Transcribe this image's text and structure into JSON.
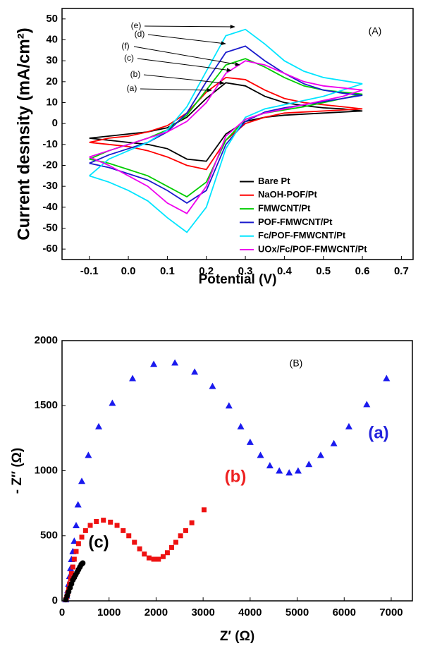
{
  "chart_data": [
    {
      "type": "line",
      "panel_label": "(A)",
      "x_label": "Potential (V)",
      "y_label": "Current desnsity (mA/cm²)",
      "xlim": [
        -0.17,
        0.73
      ],
      "ylim": [
        -65,
        55
      ],
      "xticks": [
        -0.1,
        {
          "value": 0,
          "label": "0.0"
        },
        0.1,
        0.2,
        0.3,
        0.4,
        0.5,
        0.6,
        0.7
      ],
      "yticks": [
        -60,
        -50,
        -40,
        -30,
        -20,
        -10,
        0,
        10,
        20,
        30,
        40,
        50
      ],
      "legend": "lower right",
      "annotations": [
        "(e)",
        "(d)",
        "(f)",
        "(c)",
        "(b)",
        "(a)"
      ],
      "x": [
        -0.1,
        -0.05,
        0,
        0.05,
        0.1,
        0.15,
        0.2,
        0.25,
        0.3,
        0.35,
        0.4,
        0.45,
        0.5,
        0.55,
        0.6,
        0.6,
        0.55,
        0.5,
        0.45,
        0.4,
        0.35,
        0.3,
        0.25,
        0.2,
        0.15,
        0.1,
        0.05,
        0,
        -0.05,
        -0.1
      ],
      "series": [
        {
          "name": "Bare Pt",
          "color": "#000000",
          "values": [
            -7,
            -6,
            -5,
            -4,
            -2,
            3,
            12,
            19.5,
            18,
            13,
            10,
            8.5,
            7.5,
            7,
            6,
            6,
            5.5,
            5,
            4.5,
            4,
            3,
            1,
            -5,
            -18,
            -17,
            -12,
            -10,
            -9,
            -8,
            -7
          ]
        },
        {
          "name": "NaOH-POF/Pt",
          "color": "#ff0000",
          "values": [
            -9,
            -7,
            -6,
            -4,
            -1,
            5,
            15,
            22,
            21,
            16,
            12,
            10,
            9,
            8,
            7,
            7,
            6.5,
            6,
            5.5,
            5,
            3,
            0,
            -8,
            -22,
            -20,
            -16,
            -13,
            -11,
            -10,
            -9
          ]
        },
        {
          "name": "FMWCNT/Pt",
          "color": "#00cc00",
          "values": [
            -17,
            -13,
            -10,
            -7,
            -3,
            4,
            16,
            28,
            31,
            27,
            22,
            18,
            16,
            15,
            14,
            14,
            12,
            10,
            8,
            6.5,
            5,
            2,
            -8,
            -28,
            -35,
            -30,
            -25,
            -22,
            -19,
            -17
          ]
        },
        {
          "name": "POF-FMWCNT/Pt",
          "color": "#1a1acc",
          "values": [
            -19,
            -15,
            -12,
            -9,
            -4,
            5,
            20,
            34,
            37,
            30,
            24,
            19,
            16,
            14.5,
            13.5,
            13.5,
            12,
            10.5,
            9,
            7.5,
            5.5,
            1,
            -10,
            -32,
            -38,
            -32,
            -27,
            -24,
            -21,
            -19
          ]
        },
        {
          "name": "Fc/POF-FMWCNT/Pt",
          "color": "#00e5ff",
          "values": [
            -25,
            -17,
            -13,
            -9,
            -3,
            8,
            25,
            42,
            45,
            38,
            30,
            25,
            22,
            20.5,
            19,
            19,
            16,
            13,
            11,
            9,
            7,
            3,
            -12,
            -40,
            -52,
            -45,
            -37,
            -32,
            -28,
            -25
          ]
        },
        {
          "name": "UOx/Fc/POF-FMWCNT/Pt",
          "color": "#ee00ee",
          "values": [
            -16,
            -13,
            -10,
            -7,
            -4,
            1,
            10,
            24,
            30,
            28,
            24,
            20,
            18,
            17,
            16,
            16,
            13,
            11,
            9,
            7,
            5,
            2,
            -6,
            -30,
            -43,
            -38,
            -30,
            -25,
            -20,
            -16
          ]
        }
      ]
    },
    {
      "type": "scatter",
      "panel_label": "(B)",
      "x_label": "Z′ (Ω)",
      "y_label": "- Z″ (Ω)",
      "xlim": [
        0,
        7450
      ],
      "ylim": [
        0,
        2000
      ],
      "xticks": [
        0,
        1000,
        2000,
        3000,
        4000,
        5000,
        6000,
        7000
      ],
      "yticks": [
        0,
        500,
        1000,
        1500,
        2000
      ],
      "annotations": [
        {
          "text": "(a)",
          "color": "#2222dd"
        },
        {
          "text": "(b)",
          "color": "#ee2222"
        },
        {
          "text": "(c)",
          "color": "#000000"
        }
      ],
      "series": [
        {
          "marker": "triangle",
          "color": "#1a1aee",
          "x": [
            80,
            100,
            120,
            140,
            160,
            180,
            200,
            230,
            260,
            300,
            340,
            420,
            560,
            780,
            1070,
            1500,
            1950,
            2400,
            2820,
            3200,
            3550,
            3800,
            4000,
            4220,
            4420,
            4620,
            4830,
            5020,
            5250,
            5500,
            5780,
            6100,
            6480,
            6900
          ],
          "values": [
            10,
            40,
            80,
            130,
            190,
            250,
            320,
            380,
            460,
            580,
            740,
            920,
            1120,
            1340,
            1520,
            1710,
            1820,
            1830,
            1760,
            1650,
            1500,
            1340,
            1220,
            1120,
            1040,
            1000,
            985,
            1000,
            1050,
            1120,
            1210,
            1340,
            1510,
            1710
          ]
        },
        {
          "marker": "square",
          "color": "#ee1111",
          "x": [
            80,
            100,
            120,
            140,
            160,
            180,
            200,
            230,
            260,
            300,
            350,
            420,
            500,
            600,
            730,
            880,
            1030,
            1170,
            1300,
            1420,
            1540,
            1650,
            1750,
            1850,
            1950,
            2050,
            2150,
            2240,
            2330,
            2420,
            2520,
            2630,
            2760,
            3020
          ],
          "values": [
            10,
            30,
            60,
            90,
            130,
            170,
            210,
            260,
            320,
            380,
            440,
            490,
            540,
            580,
            610,
            620,
            605,
            580,
            540,
            500,
            450,
            400,
            360,
            330,
            320,
            320,
            340,
            370,
            410,
            450,
            500,
            540,
            600,
            700
          ]
        },
        {
          "marker": "circle",
          "color": "#000000",
          "x": [
            80,
            110,
            140,
            170,
            200,
            230,
            260,
            290,
            320,
            350,
            380,
            410,
            440
          ],
          "values": [
            10,
            40,
            70,
            100,
            130,
            160,
            180,
            200,
            220,
            240,
            260,
            280,
            290
          ]
        }
      ]
    }
  ]
}
